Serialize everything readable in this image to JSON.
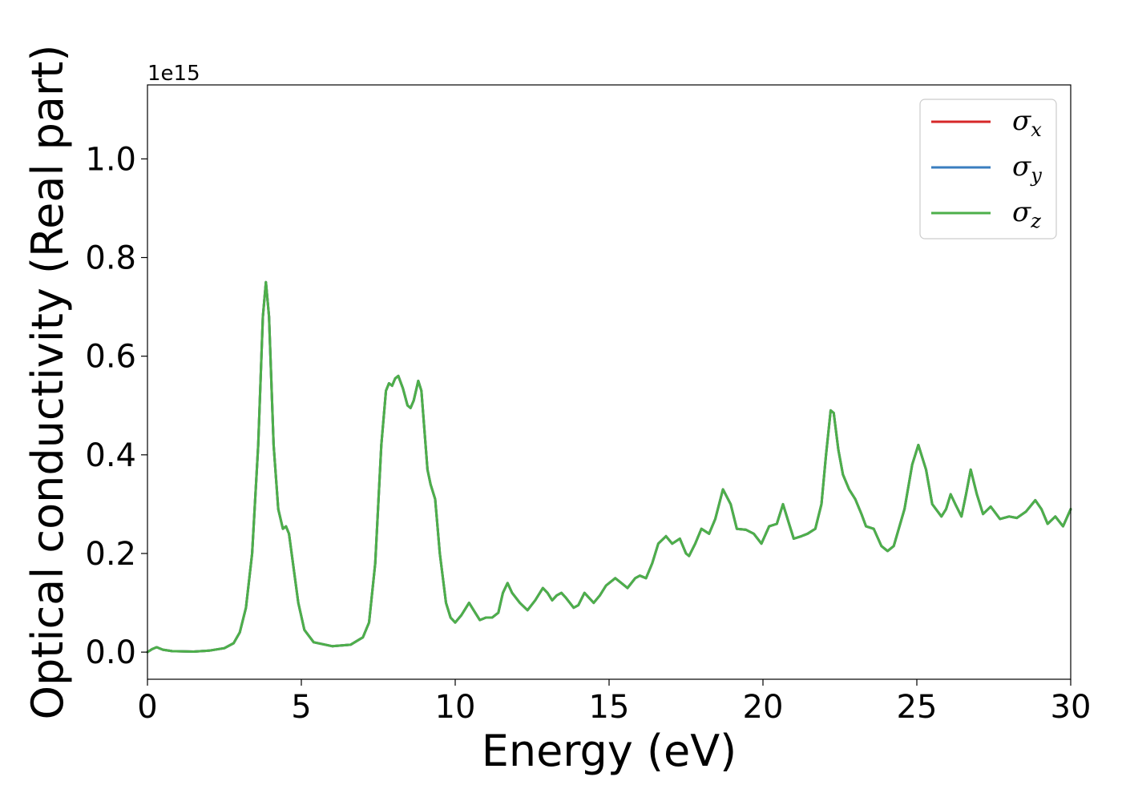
{
  "chart_data": {
    "type": "line",
    "title": "",
    "xlabel": "Energy (eV)",
    "ylabel": "Optical conductivity (Real part)",
    "y_offset_label": "1e15",
    "xlim": [
      0,
      30
    ],
    "ylim": [
      -0.055,
      1.15
    ],
    "x_ticks": [
      0,
      5,
      10,
      15,
      20,
      25,
      30
    ],
    "x_tick_labels": [
      "0",
      "5",
      "10",
      "15",
      "20",
      "25",
      "30"
    ],
    "y_ticks": [
      0.0,
      0.2,
      0.4,
      0.6,
      0.8,
      1.0
    ],
    "y_tick_labels": [
      "0.0",
      "0.2",
      "0.4",
      "0.6",
      "0.8",
      "1.0"
    ],
    "grid": false,
    "legend_position": "top-right",
    "series": [
      {
        "name": "σ",
        "subscript": "x",
        "color": "#d62728",
        "key": "x"
      },
      {
        "name": "σ",
        "subscript": "y",
        "color": "#3a7ebf",
        "key": "y"
      },
      {
        "name": "σ",
        "subscript": "z",
        "color": "#4daf4a",
        "key": "z"
      }
    ],
    "points": [
      [
        0.0,
        0.0
      ],
      [
        0.15,
        0.006
      ],
      [
        0.3,
        0.01
      ],
      [
        0.5,
        0.005
      ],
      [
        0.8,
        0.002
      ],
      [
        1.5,
        0.001
      ],
      [
        2.0,
        0.003
      ],
      [
        2.5,
        0.008
      ],
      [
        2.8,
        0.018
      ],
      [
        3.0,
        0.04
      ],
      [
        3.2,
        0.09
      ],
      [
        3.4,
        0.2
      ],
      [
        3.6,
        0.42
      ],
      [
        3.75,
        0.68
      ],
      [
        3.85,
        0.75
      ],
      [
        3.95,
        0.68
      ],
      [
        4.1,
        0.42
      ],
      [
        4.25,
        0.29
      ],
      [
        4.4,
        0.25
      ],
      [
        4.5,
        0.255
      ],
      [
        4.6,
        0.24
      ],
      [
        4.75,
        0.17
      ],
      [
        4.9,
        0.1
      ],
      [
        5.1,
        0.045
      ],
      [
        5.4,
        0.02
      ],
      [
        6.0,
        0.012
      ],
      [
        6.6,
        0.015
      ],
      [
        7.0,
        0.03
      ],
      [
        7.2,
        0.06
      ],
      [
        7.4,
        0.18
      ],
      [
        7.6,
        0.42
      ],
      [
        7.75,
        0.53
      ],
      [
        7.85,
        0.545
      ],
      [
        7.95,
        0.54
      ],
      [
        8.05,
        0.555
      ],
      [
        8.15,
        0.56
      ],
      [
        8.3,
        0.535
      ],
      [
        8.45,
        0.5
      ],
      [
        8.55,
        0.495
      ],
      [
        8.65,
        0.51
      ],
      [
        8.8,
        0.55
      ],
      [
        8.9,
        0.53
      ],
      [
        9.0,
        0.45
      ],
      [
        9.1,
        0.37
      ],
      [
        9.2,
        0.34
      ],
      [
        9.35,
        0.31
      ],
      [
        9.5,
        0.2
      ],
      [
        9.7,
        0.1
      ],
      [
        9.85,
        0.07
      ],
      [
        10.0,
        0.06
      ],
      [
        10.2,
        0.075
      ],
      [
        10.45,
        0.1
      ],
      [
        10.6,
        0.085
      ],
      [
        10.8,
        0.065
      ],
      [
        11.0,
        0.07
      ],
      [
        11.2,
        0.07
      ],
      [
        11.4,
        0.08
      ],
      [
        11.55,
        0.12
      ],
      [
        11.7,
        0.14
      ],
      [
        11.85,
        0.12
      ],
      [
        12.1,
        0.1
      ],
      [
        12.35,
        0.085
      ],
      [
        12.6,
        0.105
      ],
      [
        12.85,
        0.13
      ],
      [
        13.0,
        0.12
      ],
      [
        13.15,
        0.105
      ],
      [
        13.3,
        0.115
      ],
      [
        13.45,
        0.12
      ],
      [
        13.6,
        0.11
      ],
      [
        13.85,
        0.09
      ],
      [
        14.0,
        0.095
      ],
      [
        14.2,
        0.12
      ],
      [
        14.5,
        0.1
      ],
      [
        14.7,
        0.115
      ],
      [
        14.9,
        0.135
      ],
      [
        15.2,
        0.15
      ],
      [
        15.4,
        0.14
      ],
      [
        15.6,
        0.13
      ],
      [
        15.85,
        0.15
      ],
      [
        16.0,
        0.155
      ],
      [
        16.2,
        0.15
      ],
      [
        16.4,
        0.18
      ],
      [
        16.6,
        0.22
      ],
      [
        16.85,
        0.235
      ],
      [
        17.05,
        0.22
      ],
      [
        17.3,
        0.23
      ],
      [
        17.5,
        0.2
      ],
      [
        17.6,
        0.195
      ],
      [
        17.8,
        0.22
      ],
      [
        18.0,
        0.25
      ],
      [
        18.25,
        0.24
      ],
      [
        18.45,
        0.27
      ],
      [
        18.7,
        0.33
      ],
      [
        18.95,
        0.3
      ],
      [
        19.15,
        0.25
      ],
      [
        19.45,
        0.248
      ],
      [
        19.7,
        0.24
      ],
      [
        19.95,
        0.22
      ],
      [
        20.2,
        0.255
      ],
      [
        20.45,
        0.26
      ],
      [
        20.65,
        0.3
      ],
      [
        20.85,
        0.26
      ],
      [
        21.0,
        0.23
      ],
      [
        21.25,
        0.235
      ],
      [
        21.45,
        0.24
      ],
      [
        21.7,
        0.25
      ],
      [
        21.9,
        0.3
      ],
      [
        22.05,
        0.4
      ],
      [
        22.2,
        0.49
      ],
      [
        22.3,
        0.485
      ],
      [
        22.45,
        0.41
      ],
      [
        22.6,
        0.36
      ],
      [
        22.8,
        0.33
      ],
      [
        23.0,
        0.31
      ],
      [
        23.2,
        0.28
      ],
      [
        23.35,
        0.255
      ],
      [
        23.6,
        0.25
      ],
      [
        23.85,
        0.215
      ],
      [
        24.05,
        0.205
      ],
      [
        24.25,
        0.215
      ],
      [
        24.6,
        0.29
      ],
      [
        24.85,
        0.38
      ],
      [
        25.05,
        0.42
      ],
      [
        25.3,
        0.37
      ],
      [
        25.5,
        0.3
      ],
      [
        25.8,
        0.275
      ],
      [
        25.95,
        0.29
      ],
      [
        26.1,
        0.32
      ],
      [
        26.25,
        0.3
      ],
      [
        26.45,
        0.275
      ],
      [
        26.6,
        0.32
      ],
      [
        26.75,
        0.37
      ],
      [
        26.95,
        0.32
      ],
      [
        27.15,
        0.28
      ],
      [
        27.4,
        0.295
      ],
      [
        27.7,
        0.27
      ],
      [
        28.0,
        0.275
      ],
      [
        28.25,
        0.272
      ],
      [
        28.55,
        0.285
      ],
      [
        28.85,
        0.308
      ],
      [
        29.05,
        0.29
      ],
      [
        29.25,
        0.26
      ],
      [
        29.5,
        0.275
      ],
      [
        29.75,
        0.255
      ],
      [
        30.0,
        0.29
      ]
    ]
  }
}
